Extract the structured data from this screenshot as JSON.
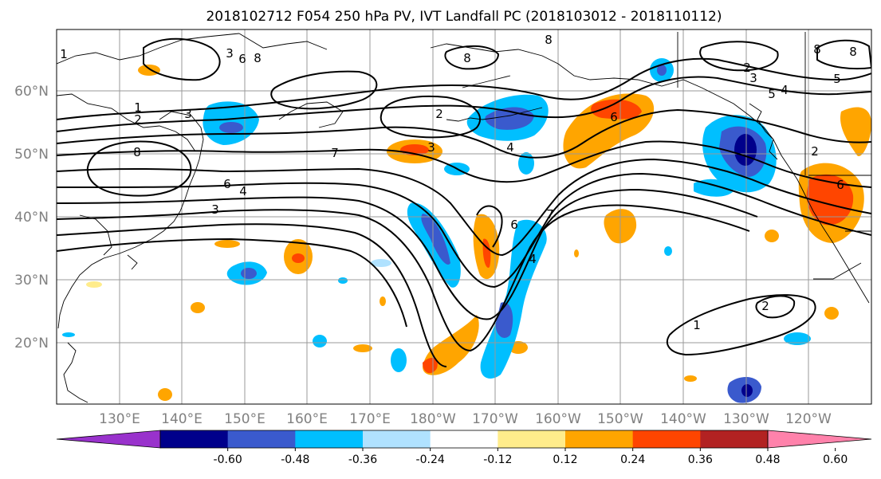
{
  "title": "2018102712 F054 250 hPa PV, IVT Landfall PC (2018103012 - 2018110112)",
  "lat_labels": [
    "60°N",
    "50°N",
    "40°N",
    "30°N",
    "20°N"
  ],
  "lon_labels": [
    "130°E",
    "140°E",
    "150°E",
    "160°E",
    "170°E",
    "180°W",
    "170°W",
    "160°W",
    "150°W",
    "140°W",
    "130°W",
    "120°W"
  ],
  "colorbar": {
    "ticks": [
      "-0.60",
      "-0.48",
      "-0.36",
      "-0.24",
      "-0.12",
      "0.12",
      "0.24",
      "0.36",
      "0.48",
      "0.60"
    ],
    "colors": [
      "#9932cc",
      "#00008b",
      "#3a5acd",
      "#00bfff",
      "#b0e2ff",
      "#ffffff",
      "#ffec8b",
      "#ffa500",
      "#ff4500",
      "#b22222",
      "#ff82ab"
    ]
  },
  "contour_labels": [
    "1",
    "2",
    "3",
    "4",
    "5",
    "6",
    "7",
    "8"
  ]
}
